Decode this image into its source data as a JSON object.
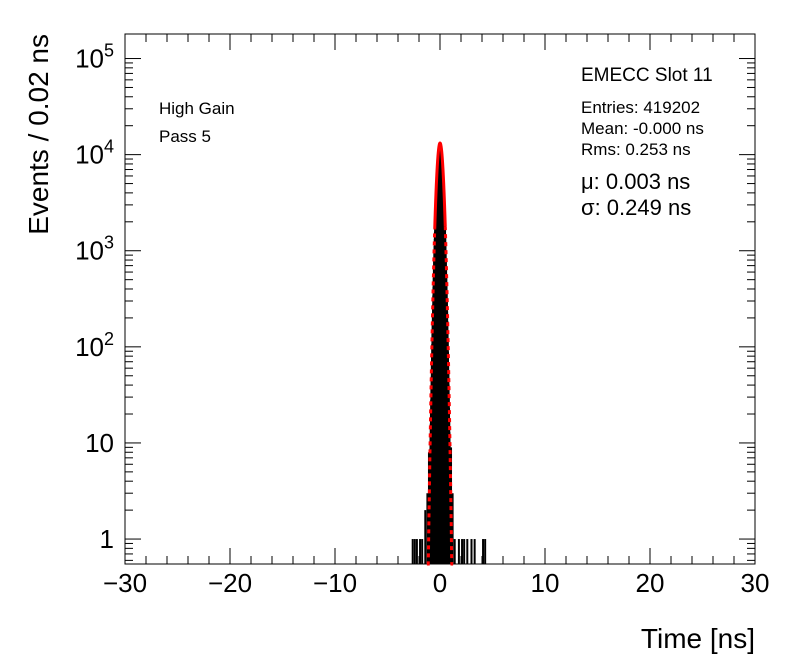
{
  "chart_data": {
    "type": "histogram",
    "title": "EMECC Slot 11",
    "xlabel": "Time [ns]",
    "ylabel": "Events / 0.02 ns",
    "xlim": [
      -30,
      30
    ],
    "ylim": [
      0.55,
      180000
    ],
    "yscale": "log",
    "grid": false,
    "x_ticks": [
      -30,
      -20,
      -10,
      0,
      10,
      20,
      30
    ],
    "x_tick_labels": [
      "−30",
      "−20",
      "−10",
      "0",
      "10",
      "20",
      "30"
    ],
    "labels": [
      "High Gain",
      "Pass 5"
    ],
    "stats": {
      "entries": "Entries: 419202",
      "mean": "Mean: -0.000 ns",
      "rms": "Rms: 0.253 ns"
    },
    "fit": {
      "mu_text": "μ: 0.003 ns",
      "sigma_text": "σ: 0.249 ns",
      "mu": 0.003,
      "sigma": 0.249,
      "peak": 13200,
      "color": "#ff0000"
    },
    "histogram_color": "#000000",
    "histogram_sparse_bins": [
      {
        "x": -2.6,
        "y": 1
      },
      {
        "x": -2.4,
        "y": 1
      },
      {
        "x": -2.2,
        "y": 1
      },
      {
        "x": -1.9,
        "y": 1
      },
      {
        "x": -1.7,
        "y": 1
      },
      {
        "x": -1.4,
        "y": 2
      },
      {
        "x": -1.2,
        "y": 3
      },
      {
        "x": -1.05,
        "y": 8
      },
      {
        "x": 1.05,
        "y": 9
      },
      {
        "x": 1.2,
        "y": 3
      },
      {
        "x": 1.4,
        "y": 1
      },
      {
        "x": 1.8,
        "y": 1
      },
      {
        "x": 2.1,
        "y": 1
      },
      {
        "x": 2.3,
        "y": 1
      },
      {
        "x": 2.6,
        "y": 1
      },
      {
        "x": 3.0,
        "y": 1
      },
      {
        "x": 3.3,
        "y": 1
      },
      {
        "x": 4.1,
        "y": 1
      },
      {
        "x": 4.3,
        "y": 1
      }
    ]
  }
}
